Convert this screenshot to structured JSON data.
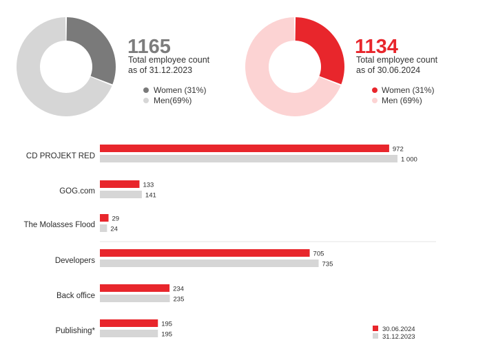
{
  "donuts": [
    {
      "total": "1165",
      "caption_line1": "Total employee count",
      "caption_line2": "as of 31.12.2023",
      "legend": [
        {
          "label": "Women (31%)",
          "color": "#7a7a7a"
        },
        {
          "label": "Men(69%)",
          "color": "#d6d6d6"
        }
      ],
      "total_color": "#7d7d7d"
    },
    {
      "total": "1134",
      "caption_line1": "Total employee count",
      "caption_line2": "as of 30.06.2024",
      "legend": [
        {
          "label": "Women (31%)",
          "color": "#e8262c"
        },
        {
          "label": "Men (69%)",
          "color": "#fcd3d3"
        }
      ],
      "total_color": "#e8262c"
    }
  ],
  "chart_data": [
    {
      "type": "pie",
      "categories": [
        "Women",
        "Men"
      ],
      "values": [
        31,
        69
      ],
      "center_value": 1165,
      "colors": [
        "#7a7a7a",
        "#d6d6d6"
      ]
    },
    {
      "type": "pie",
      "categories": [
        "Women",
        "Men"
      ],
      "values": [
        31,
        69
      ],
      "center_value": 1134,
      "colors": [
        "#e8262c",
        "#fcd3d3"
      ]
    },
    {
      "type": "bar",
      "orientation": "horizontal",
      "categories": [
        "CD PROJEKT RED",
        "GOG.com",
        "The Molasses Flood",
        "Developers",
        "Back office",
        "Publishing*"
      ],
      "series": [
        {
          "name": "30.06.2024",
          "values": [
            972,
            133,
            29,
            705,
            234,
            195
          ],
          "labels": [
            "972",
            "133",
            "29",
            "705",
            "234",
            "195"
          ],
          "color": "#e8262c"
        },
        {
          "name": "31.12.2023",
          "values": [
            1000,
            141,
            24,
            735,
            235,
            195
          ],
          "labels": [
            "1 000",
            "141",
            "24",
            "735",
            "235",
            "195"
          ],
          "color": "#d6d6d6"
        }
      ],
      "xlim": [
        0,
        1000
      ],
      "grid": false,
      "legend_position": "bottom-right"
    }
  ]
}
